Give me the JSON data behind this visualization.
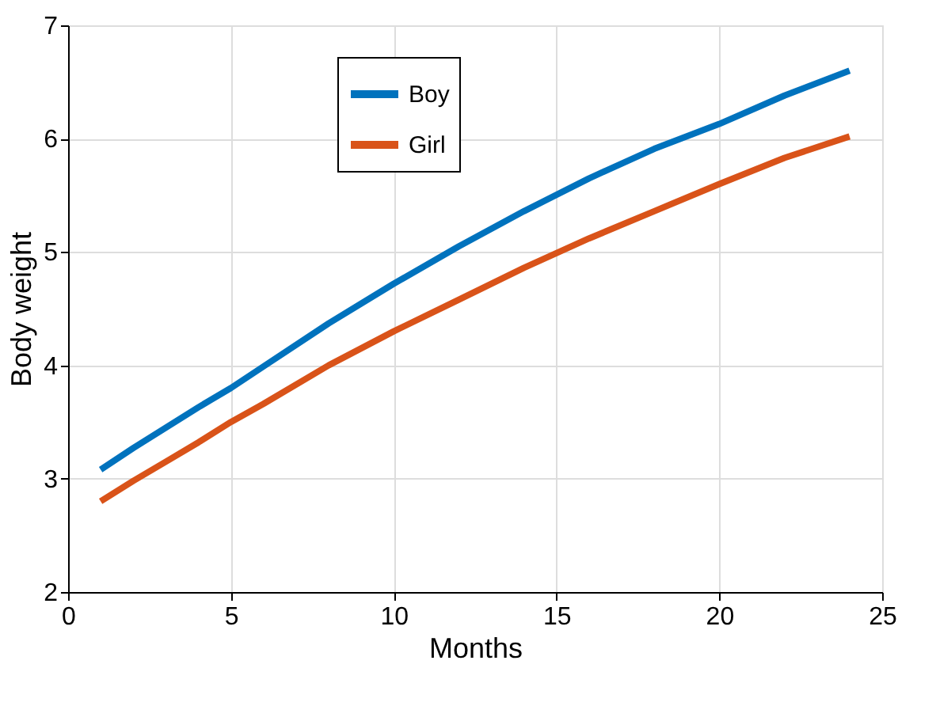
{
  "chart_data": {
    "type": "line",
    "xlabel": "Months",
    "ylabel": "Body weight",
    "x": [
      1,
      2,
      3,
      4,
      5,
      6,
      8,
      10,
      12,
      14,
      16,
      18,
      20,
      22,
      24
    ],
    "series": [
      {
        "name": "Boy",
        "color": "#0072bd",
        "values": [
          3.08,
          3.27,
          3.45,
          3.63,
          3.8,
          3.99,
          4.37,
          4.72,
          5.05,
          5.36,
          5.65,
          5.91,
          6.13,
          6.38,
          6.6
        ]
      },
      {
        "name": "Girl",
        "color": "#d95319",
        "values": [
          2.8,
          2.98,
          3.15,
          3.32,
          3.5,
          3.66,
          4.0,
          4.3,
          4.58,
          4.86,
          5.12,
          5.36,
          5.6,
          5.83,
          6.02
        ]
      }
    ],
    "xlim": [
      0,
      25
    ],
    "xticks": [
      0,
      5,
      10,
      15,
      20,
      25
    ],
    "ylim": [
      2,
      7
    ],
    "yticks": [
      2,
      3,
      4,
      5,
      6,
      7
    ],
    "grid": true,
    "legend": "top",
    "marker": "none",
    "line_style": "solid"
  }
}
